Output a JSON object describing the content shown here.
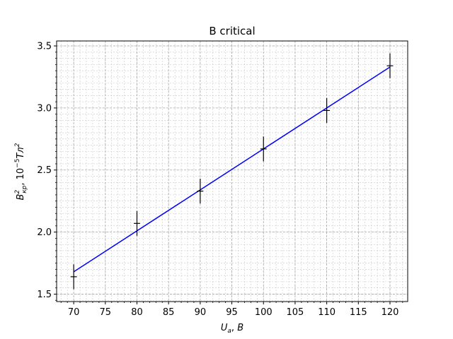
{
  "chart_data": {
    "type": "scatter",
    "title": "B critical",
    "xlabel": "U_a, B",
    "ylabel": "B^2_кр, 10^-5 Тл^2",
    "xlim": [
      67.3,
      122.8
    ],
    "ylim": [
      1.44,
      3.54
    ],
    "x_ticks": [
      70,
      75,
      80,
      85,
      90,
      95,
      100,
      105,
      110,
      115,
      120
    ],
    "y_ticks": [
      1.5,
      2.0,
      2.5,
      3.0,
      3.5
    ],
    "x_minor_step": 1,
    "y_minor_step": 0.05,
    "grid": true,
    "series": [
      {
        "kind": "errorbar",
        "color": "#000000",
        "points": [
          {
            "x": 70,
            "y": 1.64,
            "yerr": 0.1,
            "xerr": 0.5
          },
          {
            "x": 80,
            "y": 2.07,
            "yerr": 0.1,
            "xerr": 0.5
          },
          {
            "x": 90,
            "y": 2.33,
            "yerr": 0.1,
            "xerr": 0.5
          },
          {
            "x": 100,
            "y": 2.67,
            "yerr": 0.1,
            "xerr": 0.5
          },
          {
            "x": 110,
            "y": 2.98,
            "yerr": 0.1,
            "xerr": 0.5
          },
          {
            "x": 120,
            "y": 3.34,
            "yerr": 0.1,
            "xerr": 0.5
          }
        ]
      },
      {
        "kind": "line",
        "color": "#0000ff",
        "x": [
          70,
          120
        ],
        "y": [
          1.68,
          3.33
        ]
      }
    ]
  }
}
